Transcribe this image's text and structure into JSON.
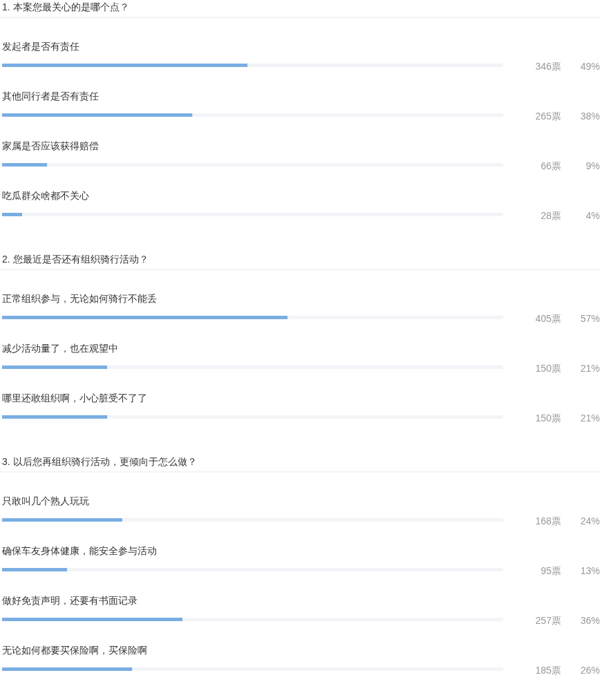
{
  "chart_data": [
    {
      "type": "bar",
      "orientation": "horizontal",
      "title": "1. 本案您最关心的是哪个点？",
      "categories": [
        "发起者是否有责任",
        "其他同行者是否有责任",
        "家属是否应该获得赔偿",
        "吃瓜群众啥都不关心"
      ],
      "values": [
        49,
        38,
        9,
        4
      ],
      "value_labels": [
        "49%",
        "38%",
        "9%",
        "4%"
      ],
      "annotations": [
        "346票",
        "265票",
        "66票",
        "28票"
      ],
      "color": "#7aaee2",
      "xlim": [
        0,
        100
      ],
      "tick_labels": false
    },
    {
      "type": "bar",
      "orientation": "horizontal",
      "title": "2. 您最近是否还有组织骑行活动？",
      "categories": [
        "正常组织参与，无论如何骑行不能丢",
        "减少活动量了，也在观望中",
        "哪里还敢组织啊，小心脏受不了了"
      ],
      "values": [
        57,
        21,
        21
      ],
      "value_labels": [
        "57%",
        "21%",
        "21%"
      ],
      "annotations": [
        "405票",
        "150票",
        "150票"
      ],
      "color": "#7aaee2",
      "xlim": [
        0,
        100
      ],
      "tick_labels": false
    },
    {
      "type": "bar",
      "orientation": "horizontal",
      "title": "3. 以后您再组织骑行活动，更倾向于怎么做？",
      "categories": [
        "只敢叫几个熟人玩玩",
        "确保车友身体健康，能安全参与活动",
        "做好免责声明，还要有书面记录",
        "无论如何都要买保险啊，买保险啊"
      ],
      "values": [
        24,
        13,
        36,
        26
      ],
      "value_labels": [
        "24%",
        "13%",
        "36%",
        "26%"
      ],
      "annotations": [
        "168票",
        "95票",
        "257票",
        "185票"
      ],
      "color": "#7aaee2",
      "xlim": [
        0,
        100
      ],
      "tick_labels": false
    }
  ]
}
